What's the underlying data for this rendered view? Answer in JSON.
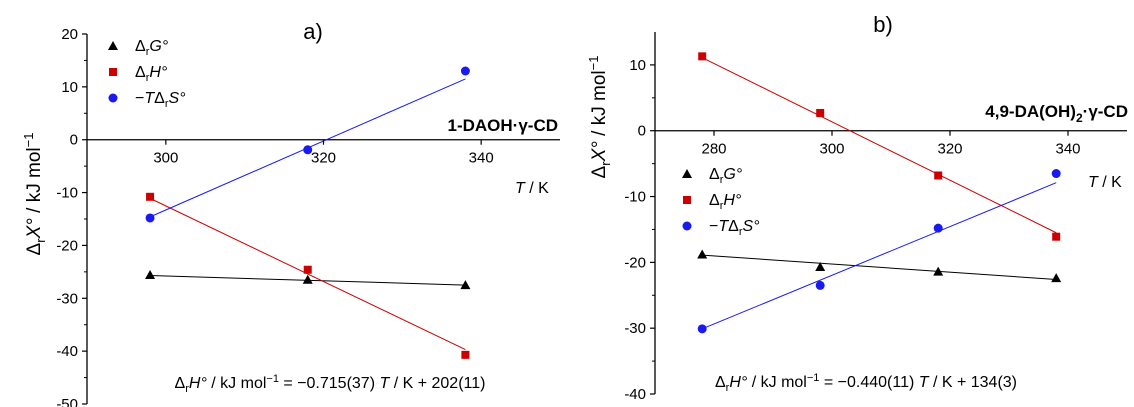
{
  "chart_data": [
    {
      "type": "scatter",
      "panel_label": "a)",
      "compound_label": [
        "1-DAOH·γ-CD"
      ],
      "xlabel": [
        "T",
        " / K"
      ],
      "ylabel": [
        "Δ",
        "r",
        "X°",
        " / kJ mol",
        "−1"
      ],
      "xlim": [
        290,
        350
      ],
      "ylim": [
        -50,
        20
      ],
      "x_ticks": [
        300,
        320,
        340
      ],
      "y_ticks": [
        -50,
        -40,
        -30,
        -20,
        -10,
        0,
        10,
        20
      ],
      "x_tick_labels": [
        "300",
        "320",
        "340"
      ],
      "y_tick_labels": [
        "-50",
        "-40",
        "-30",
        "-20",
        "-10",
        "0",
        "10",
        "20"
      ],
      "grid": false,
      "legend_position": "top-left",
      "series": [
        {
          "name": [
            "Δ",
            "r",
            "G°"
          ],
          "marker": "triangle",
          "color": "#000000",
          "x": [
            298,
            318,
            338
          ],
          "y": [
            -25.6,
            -26.5,
            -27.5
          ],
          "fit": [
            -25.7,
            -27.5
          ]
        },
        {
          "name": [
            "Δ",
            "r",
            "H°"
          ],
          "marker": "square",
          "color": "#cc0000",
          "x": [
            298,
            318,
            338
          ],
          "y": [
            -10.8,
            -24.6,
            -40.7
          ],
          "fit": [
            -11.1,
            -39.7
          ]
        },
        {
          "name": [
            "−",
            "T",
            "Δ",
            "r",
            "S°"
          ],
          "marker": "circle",
          "color": "#1a1aee",
          "x": [
            298,
            318,
            338
          ],
          "y": [
            -14.8,
            -1.9,
            13.0
          ],
          "fit": [
            -14.6,
            11.5
          ]
        }
      ],
      "equation": [
        "Δ",
        "r",
        "H°",
        " / kJ mol",
        "−1",
        " = −0.715(37) ",
        "T",
        " / K + 202(11)"
      ]
    },
    {
      "type": "scatter",
      "panel_label": "b)",
      "compound_label": [
        "4,9-DA(OH)",
        "2",
        "·γ-CD"
      ],
      "xlabel": [
        "T",
        " / K"
      ],
      "ylabel": [
        "Δ",
        "r",
        "X°",
        " / kJ mol",
        "−1"
      ],
      "xlim": [
        270,
        350
      ],
      "ylim": [
        -40,
        15
      ],
      "x_ticks": [
        280,
        300,
        320,
        340
      ],
      "y_ticks": [
        -40,
        -30,
        -20,
        -10,
        0,
        10
      ],
      "x_tick_labels": [
        "280",
        "300",
        "320",
        "340"
      ],
      "y_tick_labels": [
        "-40",
        "-30",
        "-20",
        "-10",
        "0",
        "10"
      ],
      "grid": false,
      "legend_position": "center-left",
      "series": [
        {
          "name": [
            "Δ",
            "r",
            "G°"
          ],
          "marker": "triangle",
          "color": "#000000",
          "x": [
            278,
            298,
            318,
            338
          ],
          "y": [
            -18.8,
            -20.7,
            -21.4,
            -22.4
          ],
          "fit": [
            -18.9,
            -22.6
          ]
        },
        {
          "name": [
            "Δ",
            "r",
            "H°"
          ],
          "marker": "square",
          "color": "#cc0000",
          "x": [
            278,
            298,
            318,
            338
          ],
          "y": [
            11.3,
            2.7,
            -6.8,
            -16.1
          ],
          "fit": [
            11.1,
            -15.5
          ]
        },
        {
          "name": [
            "−",
            "T",
            "Δ",
            "r",
            "S°"
          ],
          "marker": "circle",
          "color": "#1a1aee",
          "x": [
            278,
            298,
            318,
            338
          ],
          "y": [
            -30.1,
            -23.5,
            -14.8,
            -6.5
          ],
          "fit": [
            -30.1,
            -7.9
          ]
        }
      ],
      "equation": [
        "Δ",
        "r",
        "H°",
        " / kJ mol",
        "−1",
        " = −0.440(11) ",
        "T",
        " / K + 134(3)"
      ]
    }
  ]
}
